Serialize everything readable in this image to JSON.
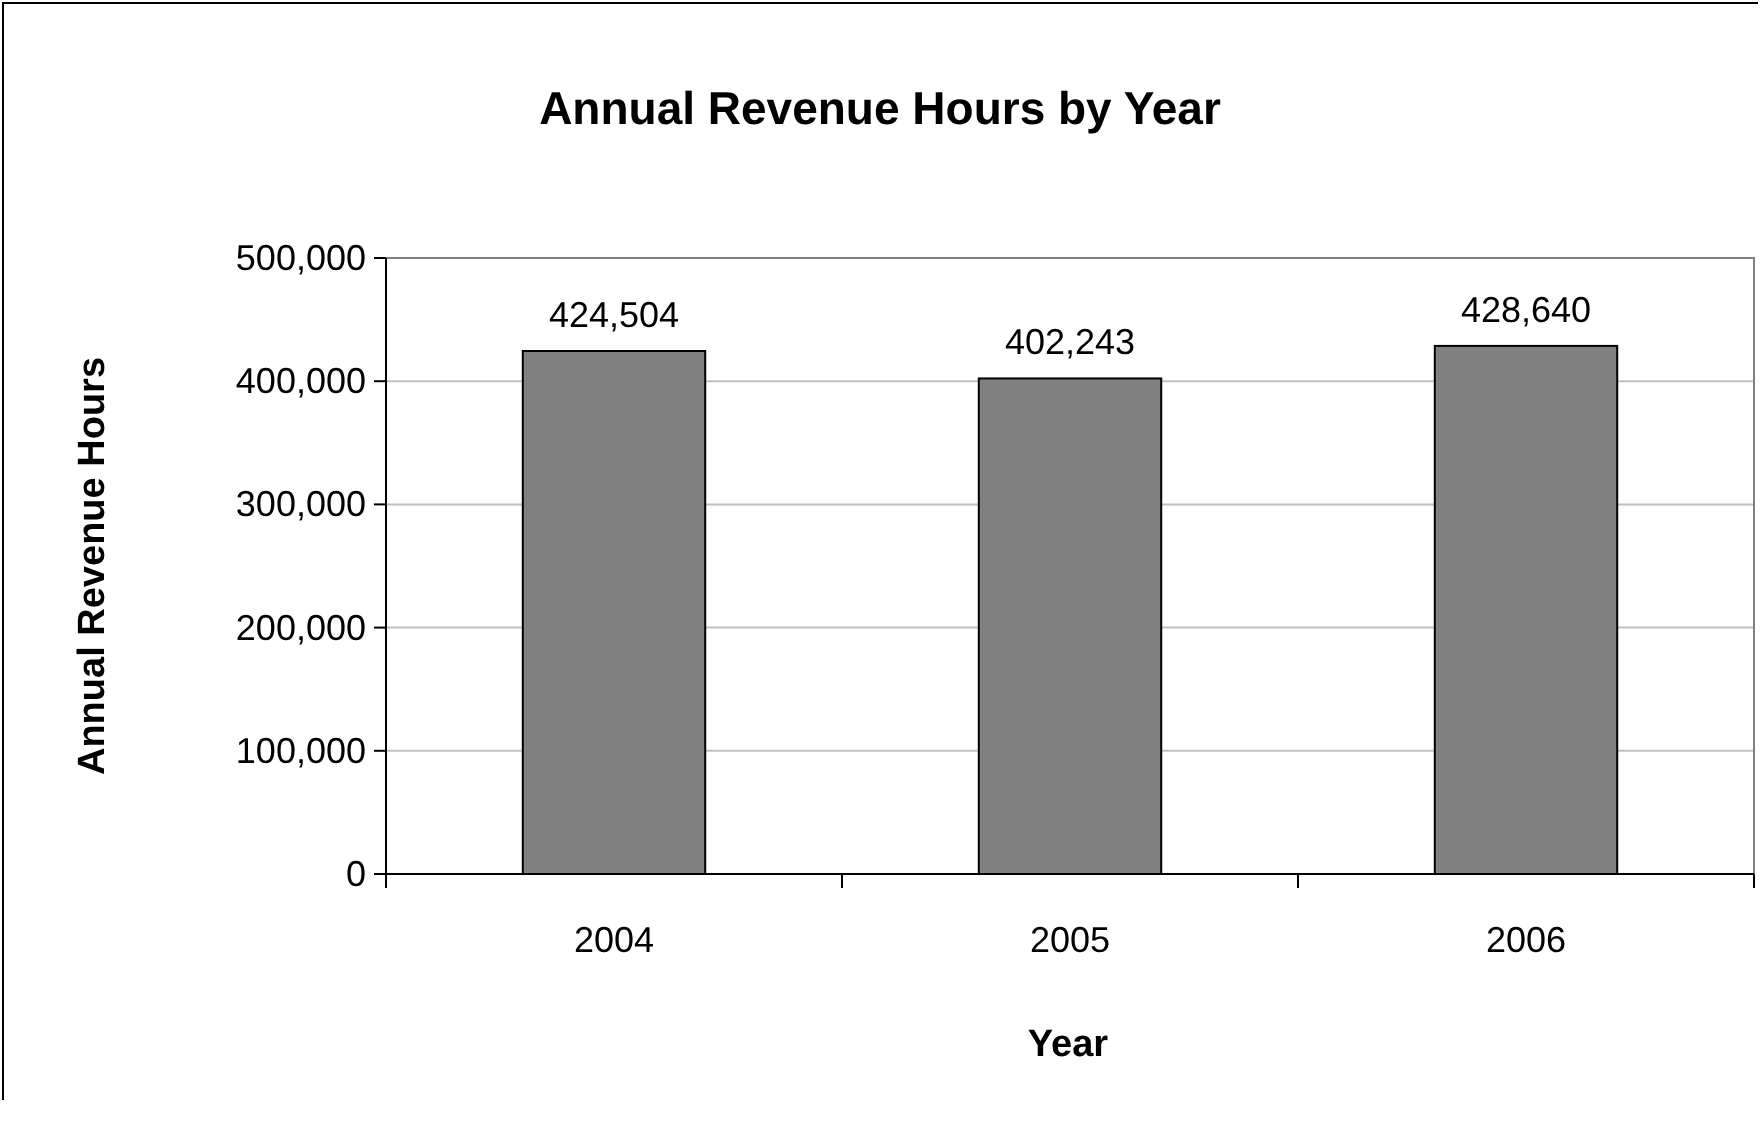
{
  "chart_data": {
    "type": "bar",
    "title": "Annual Revenue Hours by Year",
    "xlabel": "Year",
    "ylabel": "Annual Revenue Hours",
    "categories": [
      "2004",
      "2005",
      "2006"
    ],
    "values": [
      424504,
      402243,
      428640
    ],
    "color": "#808080",
    "ylim": [
      0,
      500000
    ],
    "yticks": [
      {
        "value": 0,
        "label": "0"
      },
      {
        "value": 100000,
        "label": "100,000"
      },
      {
        "value": 200000,
        "label": "200,000"
      },
      {
        "value": 300000,
        "label": "300,000"
      },
      {
        "value": 400000,
        "label": "400,000"
      },
      {
        "value": 500000,
        "label": "500,000"
      }
    ],
    "grid": "y",
    "value_labels": [
      "424,504",
      "402,243",
      "428,640"
    ]
  }
}
